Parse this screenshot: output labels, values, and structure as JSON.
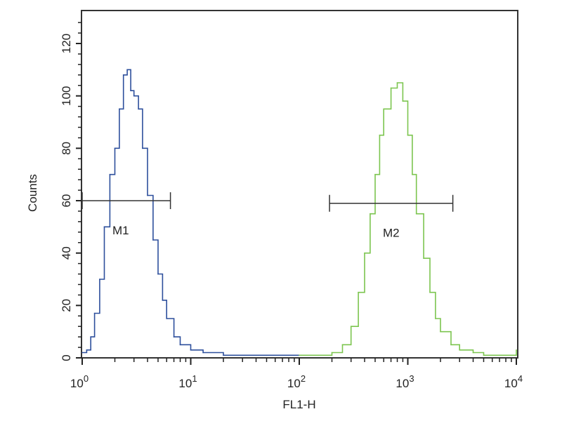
{
  "chart_data": {
    "type": "line",
    "title": "",
    "xlabel": "FL1-H",
    "ylabel": "Counts",
    "x_scale": "log",
    "xlim": [
      1,
      10000
    ],
    "ylim": [
      0,
      132
    ],
    "x_tick_labels": [
      {
        "base": "10",
        "exp": "0"
      },
      {
        "base": "10",
        "exp": "1"
      },
      {
        "base": "10",
        "exp": "2"
      },
      {
        "base": "10",
        "exp": "3"
      },
      {
        "base": "10",
        "exp": "4"
      }
    ],
    "y_ticks": [
      0,
      20,
      40,
      60,
      80,
      100,
      120
    ],
    "grid": false,
    "series": [
      {
        "color": "#2d4f9c",
        "points": [
          [
            1,
            2
          ],
          [
            1.1,
            3
          ],
          [
            1.2,
            8
          ],
          [
            1.3,
            17
          ],
          [
            1.45,
            30
          ],
          [
            1.6,
            50
          ],
          [
            1.8,
            70
          ],
          [
            2.0,
            80
          ],
          [
            2.2,
            95
          ],
          [
            2.4,
            108
          ],
          [
            2.6,
            110
          ],
          [
            2.8,
            102
          ],
          [
            3.0,
            100
          ],
          [
            3.3,
            95
          ],
          [
            3.6,
            80
          ],
          [
            4.0,
            62
          ],
          [
            4.5,
            45
          ],
          [
            5.0,
            32
          ],
          [
            5.5,
            22
          ],
          [
            6.0,
            15
          ],
          [
            7,
            8
          ],
          [
            8,
            5
          ],
          [
            10,
            3
          ],
          [
            13,
            2
          ],
          [
            20,
            1
          ],
          [
            50,
            1
          ],
          [
            100,
            1
          ]
        ]
      },
      {
        "color": "#7cc54f",
        "points": [
          [
            100,
            1
          ],
          [
            150,
            1
          ],
          [
            200,
            2
          ],
          [
            250,
            5
          ],
          [
            300,
            12
          ],
          [
            350,
            25
          ],
          [
            400,
            40
          ],
          [
            450,
            55
          ],
          [
            500,
            70
          ],
          [
            550,
            85
          ],
          [
            600,
            95
          ],
          [
            700,
            103
          ],
          [
            800,
            105
          ],
          [
            900,
            98
          ],
          [
            1000,
            85
          ],
          [
            1100,
            70
          ],
          [
            1200,
            55
          ],
          [
            1400,
            38
          ],
          [
            1600,
            25
          ],
          [
            1800,
            15
          ],
          [
            2000,
            10
          ],
          [
            2500,
            5
          ],
          [
            3000,
            3
          ],
          [
            4000,
            2
          ],
          [
            5000,
            1
          ],
          [
            10000,
            3
          ]
        ]
      }
    ],
    "markers": [
      {
        "label": "M1",
        "x_start": 1,
        "x_end": 6.5,
        "y": 60
      },
      {
        "label": "M2",
        "x_start": 190,
        "x_end": 2600,
        "y": 59
      }
    ]
  }
}
